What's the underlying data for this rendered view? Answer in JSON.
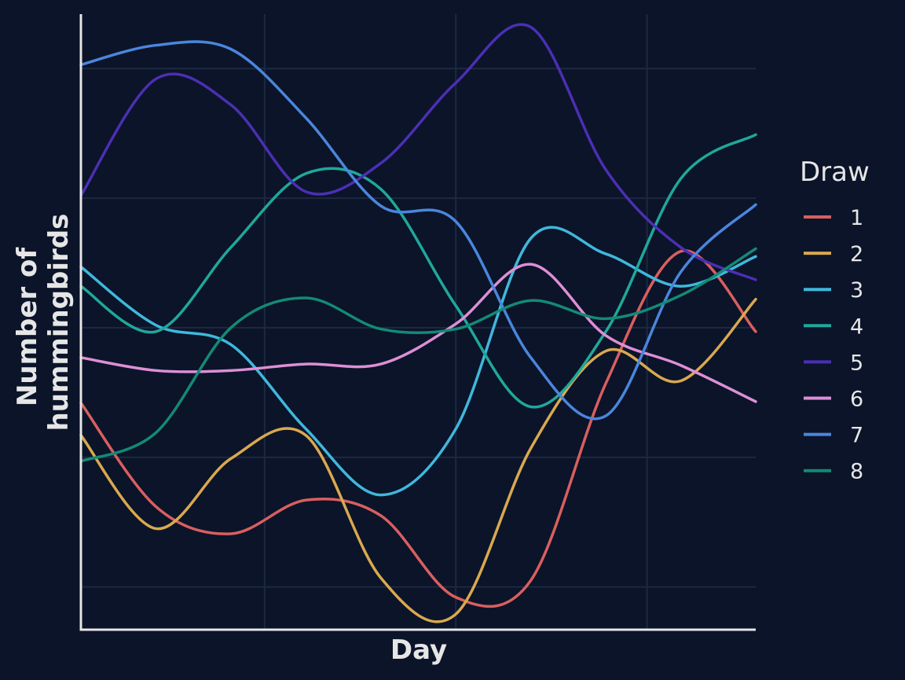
{
  "chart_data": {
    "type": "line",
    "title": "",
    "xlabel": "Day",
    "ylabel": "Number of hummingbirds",
    "ylabel_lines": [
      "Number of",
      "hummingbirds"
    ],
    "legend_title": "Draw",
    "legend_position": "right",
    "grid": true,
    "x_ticks_labeled": false,
    "y_ticks_labeled": false,
    "xlim": [
      1,
      10
    ],
    "ylim": [
      0,
      4.75
    ],
    "x": [
      1,
      2,
      3,
      4,
      5,
      6,
      7,
      8,
      9,
      10
    ],
    "series": [
      {
        "name": "1",
        "color": "#d95f5f",
        "values": [
          1.75,
          0.95,
          0.74,
          1.0,
          0.88,
          0.25,
          0.38,
          1.9,
          2.92,
          2.3
        ]
      },
      {
        "name": "2",
        "color": "#d9a94e",
        "values": [
          1.5,
          0.78,
          1.32,
          1.5,
          0.4,
          0.12,
          1.4,
          2.15,
          1.92,
          2.55
        ]
      },
      {
        "name": "3",
        "color": "#3fb8dc",
        "values": [
          2.8,
          2.35,
          2.2,
          1.55,
          1.04,
          1.55,
          3.02,
          2.9,
          2.65,
          2.88
        ]
      },
      {
        "name": "4",
        "color": "#1fa89a",
        "values": [
          2.65,
          2.3,
          2.95,
          3.52,
          3.4,
          2.5,
          1.72,
          2.3,
          3.48,
          3.82
        ]
      },
      {
        "name": "5",
        "color": "#4b2fb3",
        "values": [
          3.35,
          4.25,
          4.05,
          3.38,
          3.6,
          4.22,
          4.65,
          3.55,
          2.95,
          2.7
        ]
      },
      {
        "name": "6",
        "color": "#dd8fd5",
        "values": [
          2.1,
          2.0,
          2.0,
          2.05,
          2.05,
          2.36,
          2.82,
          2.27,
          2.04,
          1.76
        ]
      },
      {
        "name": "7",
        "color": "#4a86dd",
        "values": [
          4.36,
          4.51,
          4.48,
          3.95,
          3.27,
          3.15,
          2.1,
          1.65,
          2.76,
          3.28
        ]
      },
      {
        "name": "8",
        "color": "#138a76",
        "values": [
          1.3,
          1.52,
          2.33,
          2.56,
          2.32,
          2.32,
          2.54,
          2.4,
          2.58,
          2.94
        ]
      }
    ]
  }
}
